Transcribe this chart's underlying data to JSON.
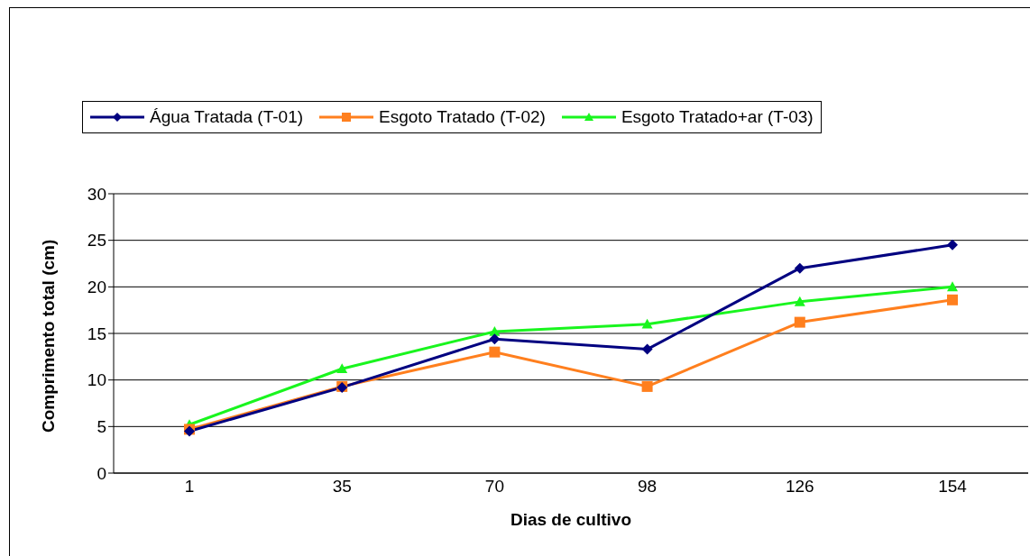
{
  "chart_data": {
    "type": "line",
    "xlabel": "Dias de cultivo",
    "ylabel": "Comprimento total (cm)",
    "categories": [
      "1",
      "35",
      "70",
      "98",
      "126",
      "154"
    ],
    "series": [
      {
        "name": "Água Tratada (T-01)",
        "color": "#000080",
        "marker": "diamond",
        "values": [
          4.5,
          9.2,
          14.4,
          13.3,
          22.0,
          24.5
        ]
      },
      {
        "name": "Esgoto Tratado (T-02)",
        "color": "#ff7f1e",
        "marker": "square",
        "values": [
          4.7,
          9.3,
          13.0,
          9.3,
          16.2,
          18.6
        ]
      },
      {
        "name": "Esgoto Tratado+ar (T-03)",
        "color": "#19f51e",
        "marker": "triangle",
        "values": [
          5.2,
          11.2,
          15.2,
          16.0,
          18.4,
          20.0
        ]
      }
    ],
    "ylim": [
      0,
      30
    ],
    "yticks": [
      0,
      5,
      10,
      15,
      20,
      25,
      30
    ],
    "grid": "y",
    "legend": "top"
  }
}
